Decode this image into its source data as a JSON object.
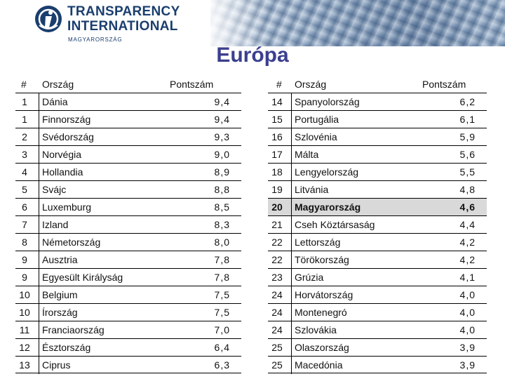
{
  "header": {
    "logo_line1": "TRANSPARENCY",
    "logo_line2": "INTERNATIONAL",
    "logo_sub": "MAGYARORSZÁG"
  },
  "title": "Európa",
  "columns": {
    "rank": "#",
    "country": "Ország",
    "score": "Pontszám"
  },
  "colors": {
    "title": "#3b3f8f",
    "logo": "#1a3e6e",
    "highlight_row": "#d9d9d9"
  },
  "left_rows": [
    {
      "rank": "1",
      "country": "Dánia",
      "score": "9,4"
    },
    {
      "rank": "1",
      "country": "Finnország",
      "score": "9,4"
    },
    {
      "rank": "2",
      "country": "Svédország",
      "score": "9,3"
    },
    {
      "rank": "3",
      "country": "Norvégia",
      "score": "9,0"
    },
    {
      "rank": "4",
      "country": "Hollandia",
      "score": "8,9"
    },
    {
      "rank": "5",
      "country": "Svájc",
      "score": "8,8"
    },
    {
      "rank": "6",
      "country": "Luxemburg",
      "score": "8,5"
    },
    {
      "rank": "7",
      "country": "Izland",
      "score": "8,3"
    },
    {
      "rank": "8",
      "country": "Németország",
      "score": "8,0"
    },
    {
      "rank": "9",
      "country": "Ausztria",
      "score": "7,8"
    },
    {
      "rank": "9",
      "country": "Egyesült Királyság",
      "score": "7,8"
    },
    {
      "rank": "10",
      "country": "Belgium",
      "score": "7,5"
    },
    {
      "rank": "10",
      "country": "Írország",
      "score": "7,5"
    },
    {
      "rank": "11",
      "country": "Franciaország",
      "score": "7,0"
    },
    {
      "rank": "12",
      "country": "Észtország",
      "score": "6,4"
    },
    {
      "rank": "13",
      "country": "Ciprus",
      "score": "6,3"
    }
  ],
  "right_rows": [
    {
      "rank": "14",
      "country": "Spanyolország",
      "score": "6,2"
    },
    {
      "rank": "15",
      "country": "Portugália",
      "score": "6,1"
    },
    {
      "rank": "16",
      "country": "Szlovénia",
      "score": "5,9"
    },
    {
      "rank": "17",
      "country": "Málta",
      "score": "5,6"
    },
    {
      "rank": "18",
      "country": "Lengyelország",
      "score": "5,5"
    },
    {
      "rank": "19",
      "country": "Litvánia",
      "score": "4,8"
    },
    {
      "rank": "20",
      "country": "Magyarország",
      "score": "4,6",
      "highlight": true
    },
    {
      "rank": "21",
      "country": "Cseh Köztársaság",
      "score": "4,4"
    },
    {
      "rank": "22",
      "country": "Lettország",
      "score": "4,2"
    },
    {
      "rank": "22",
      "country": "Törökország",
      "score": "4,2"
    },
    {
      "rank": "23",
      "country": "Grúzia",
      "score": "4,1"
    },
    {
      "rank": "24",
      "country": "Horvátország",
      "score": "4,0"
    },
    {
      "rank": "24",
      "country": "Montenegró",
      "score": "4,0"
    },
    {
      "rank": "24",
      "country": "Szlovákia",
      "score": "4,0"
    },
    {
      "rank": "25",
      "country": "Olaszország",
      "score": "3,9"
    },
    {
      "rank": "25",
      "country": "Macedónia",
      "score": "3,9"
    }
  ]
}
